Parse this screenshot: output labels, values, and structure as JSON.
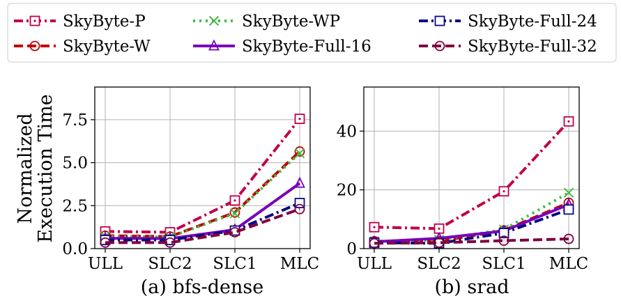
{
  "figure": {
    "ylabel": [
      "Normalized",
      "Execution Time"
    ]
  },
  "legend": {
    "placement": "top",
    "entries": [
      {
        "label": "SkyByte-P",
        "color": "#c0004a",
        "dash": "dashdot",
        "marker": "square-dot"
      },
      {
        "label": "SkyByte-W",
        "color": "#c00000",
        "dash": "dashed",
        "marker": "circle"
      },
      {
        "label": "SkyByte-WP",
        "color": "#44bb44",
        "dash": "dotted",
        "marker": "x"
      },
      {
        "label": "SkyByte-Full-16",
        "color": "#7a00bb",
        "dash": "solid",
        "marker": "triangle"
      },
      {
        "label": "SkyByte-Full-24",
        "color": "#0a0a80",
        "dash": "dashdot",
        "marker": "square"
      },
      {
        "label": "SkyByte-Full-32",
        "color": "#800040",
        "dash": "dashed",
        "marker": "circle"
      }
    ]
  },
  "chart_data": [
    {
      "type": "line",
      "title": "(a) bfs-dense",
      "categories": [
        "ULL",
        "SLC2",
        "SLC1",
        "MLC"
      ],
      "ylim": [
        0,
        9.4
      ],
      "yticks": [
        0.0,
        2.5,
        5.0,
        7.5
      ],
      "ytick_labels": [
        "0.0",
        "2.5",
        "5.0",
        "7.5"
      ],
      "grid": true,
      "series": [
        {
          "name": "SkyByte-P",
          "values": [
            1.0,
            0.95,
            2.8,
            7.55
          ]
        },
        {
          "name": "SkyByte-W",
          "values": [
            0.75,
            0.7,
            2.1,
            5.65
          ]
        },
        {
          "name": "SkyByte-WP",
          "values": [
            0.7,
            0.68,
            2.05,
            5.55
          ]
        },
        {
          "name": "SkyByte-Full-16",
          "values": [
            0.6,
            0.58,
            1.1,
            3.8
          ]
        },
        {
          "name": "SkyByte-Full-24",
          "values": [
            0.5,
            0.5,
            1.05,
            2.65
          ]
        },
        {
          "name": "SkyByte-Full-32",
          "values": [
            0.35,
            0.35,
            0.95,
            2.3
          ]
        }
      ]
    },
    {
      "type": "line",
      "title": "(b) srad",
      "categories": [
        "ULL",
        "SLC2",
        "SLC1",
        "MLC"
      ],
      "ylim": [
        0,
        55
      ],
      "yticks": [
        0,
        20,
        40
      ],
      "ytick_labels": [
        "0",
        "20",
        "40"
      ],
      "grid": true,
      "series": [
        {
          "name": "SkyByte-P",
          "values": [
            7.3,
            6.8,
            19.5,
            43.3
          ]
        },
        {
          "name": "SkyByte-W",
          "values": [
            2.5,
            2.5,
            6.2,
            15.6
          ]
        },
        {
          "name": "SkyByte-WP",
          "values": [
            2.5,
            3.0,
            6.5,
            19.0
          ]
        },
        {
          "name": "SkyByte-Full-16",
          "values": [
            2.3,
            3.5,
            6.0,
            15.0
          ]
        },
        {
          "name": "SkyByte-Full-24",
          "values": [
            2.0,
            1.8,
            5.3,
            13.3
          ]
        },
        {
          "name": "SkyByte-Full-32",
          "values": [
            1.8,
            2.0,
            2.7,
            3.3
          ]
        }
      ]
    }
  ]
}
